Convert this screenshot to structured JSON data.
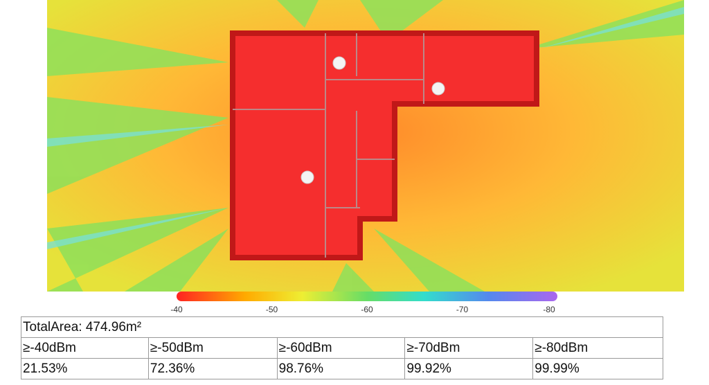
{
  "colorbar": {
    "ticks": [
      -40,
      -50,
      -60,
      -70,
      -80
    ],
    "range": [
      -40,
      -80
    ]
  },
  "table": {
    "caption": "TotalArea: 474.96m²",
    "header": [
      "≥-40dBm",
      "≥-50dBm",
      "≥-60dBm",
      "≥-70dBm",
      "≥-80dBm"
    ],
    "rows": [
      [
        "21.53%",
        "72.36%",
        "98.76%",
        "99.92%",
        "99.99%"
      ]
    ]
  }
}
